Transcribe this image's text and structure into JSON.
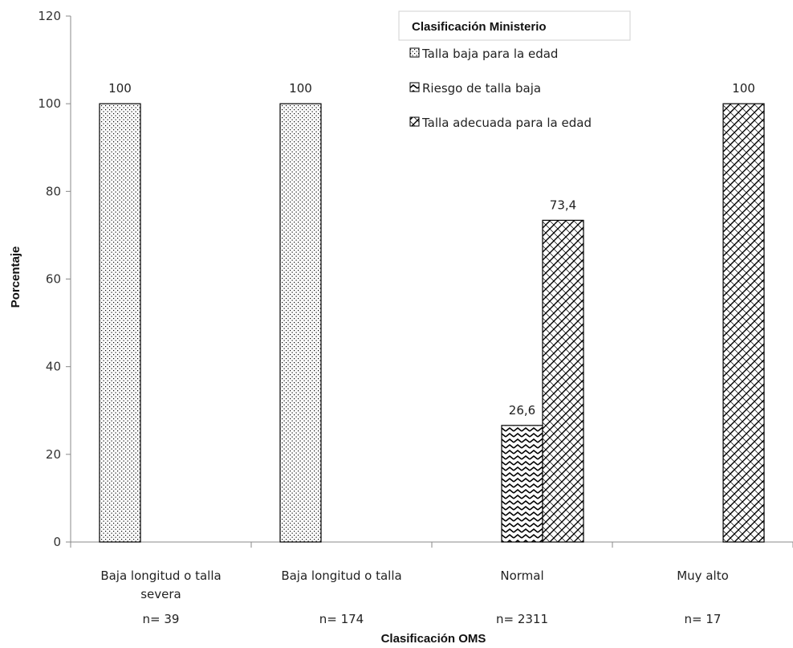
{
  "chart_data": {
    "type": "bar",
    "title": "",
    "xlabel": "Clasificación  OMS",
    "ylabel": "Porcentaje",
    "ylim": [
      0,
      120
    ],
    "yticks": [
      0,
      20,
      40,
      60,
      80,
      100,
      120
    ],
    "grid": false,
    "legend_placement": "top-right",
    "legend_title": "Clasificación  Ministerio",
    "categories": [
      {
        "label_lines": [
          "Baja longitud o talla",
          "severa"
        ],
        "n_label": "n= 39"
      },
      {
        "label_lines": [
          "Baja longitud o talla"
        ],
        "n_label": "n= 174"
      },
      {
        "label_lines": [
          "Normal"
        ],
        "n_label": "n= 2311"
      },
      {
        "label_lines": [
          "Muy alto"
        ],
        "n_label": "n= 17"
      }
    ],
    "series": [
      {
        "name": "Talla baja para la edad",
        "pattern": "dots",
        "values": [
          100,
          100,
          null,
          null
        ],
        "value_labels": [
          "100",
          "100",
          "",
          ""
        ]
      },
      {
        "name": "Riesgo de talla baja",
        "pattern": "zigzag",
        "values": [
          null,
          null,
          26.6,
          null
        ],
        "value_labels": [
          "",
          "",
          "26,6",
          ""
        ]
      },
      {
        "name": "Talla adecuada para la edad",
        "pattern": "crosshatch",
        "values": [
          null,
          null,
          73.4,
          100
        ],
        "value_labels": [
          "",
          "",
          "73,4",
          "100"
        ]
      }
    ],
    "colors": {
      "bar_fill": "#ffffff",
      "bar_stroke": "#000000",
      "axis": "#888888"
    }
  }
}
